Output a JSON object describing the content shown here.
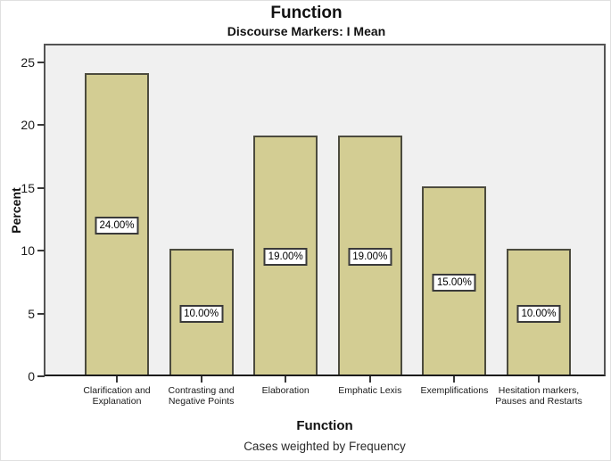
{
  "chart": {
    "title": "Function",
    "subtitle": "Discourse Markers: I Mean",
    "ylabel": "Percent",
    "xlabel": "Function",
    "footnote": "Cases weighted by Frequency"
  },
  "chart_data": {
    "type": "bar",
    "title": "Function",
    "subtitle": "Discourse Markers: I Mean",
    "xlabel": "Function",
    "ylabel": "Percent",
    "footnote": "Cases weighted by Frequency",
    "categories": [
      "Clarification and Explanation",
      "Contrasting and Negative Points",
      "Elaboration",
      "Emphatic Lexis",
      "Exemplifications",
      "Hesitation markers, Pauses and Restarts"
    ],
    "values": [
      24,
      10,
      19,
      19,
      15,
      10
    ],
    "bar_labels": [
      "24.00%",
      "10.00%",
      "19.00%",
      "19.00%",
      "15.00%",
      "10.00%"
    ],
    "yticks": [
      0,
      5,
      10,
      15,
      20,
      25
    ],
    "ylim": [
      0,
      26.5
    ],
    "grid": false,
    "legend": "none",
    "colors": {
      "bar_fill": "#d3cd93",
      "bar_border": "#4c4b3e",
      "plot_background": "#f0f0f0",
      "frame_border": "#545454",
      "label_box_background": "#ffffff",
      "label_box_border": "#3a3a3a"
    }
  }
}
